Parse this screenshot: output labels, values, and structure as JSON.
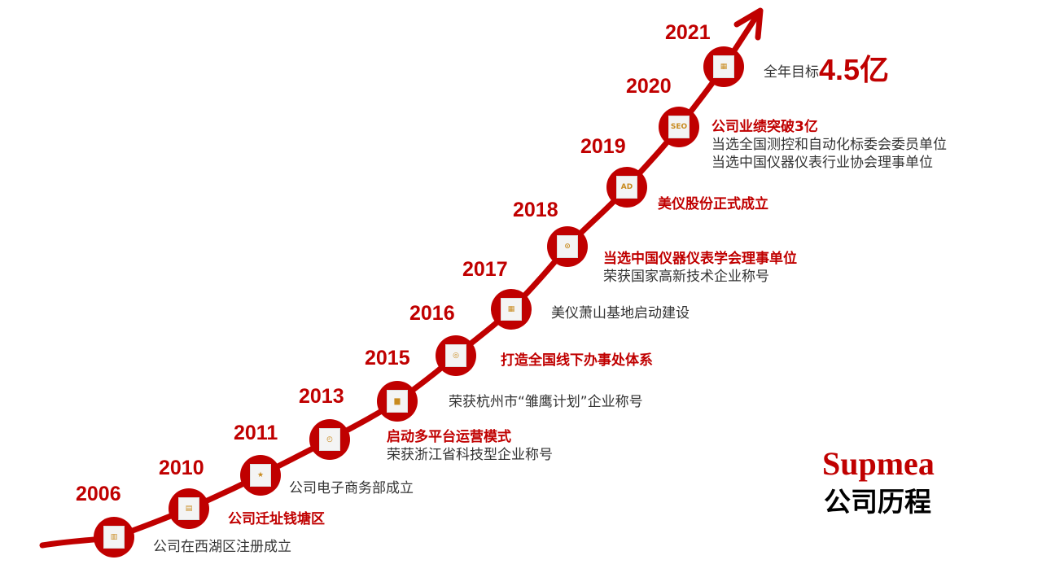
{
  "brand": {
    "logo": "Supmea",
    "title": "公司历程",
    "accent": "#c00000"
  },
  "events": [
    {
      "year": "2006",
      "icon": "building-icon",
      "lines": [
        {
          "text": "公司在西湖区注册成立",
          "bold": false
        }
      ]
    },
    {
      "year": "2010",
      "icon": "notebook-icon",
      "lines": [
        {
          "text": "公司迁址钱塘区",
          "bold": true
        }
      ]
    },
    {
      "year": "2011",
      "icon": "star-document-icon",
      "lines": [
        {
          "text": "公司电子商务部成立",
          "bold": false
        }
      ]
    },
    {
      "year": "2013",
      "icon": "dashboard-icon",
      "lines": [
        {
          "text": "启动多平台运营模式",
          "bold": true
        },
        {
          "text": "荣获浙江省科技型企业称号",
          "bold": false
        }
      ]
    },
    {
      "year": "2015",
      "icon": "bar-chart-icon",
      "lines": [
        {
          "text": "荣获杭州市“雏鹰计划”企业称号",
          "bold": false
        }
      ]
    },
    {
      "year": "2016",
      "icon": "monitor-icon",
      "lines": [
        {
          "text": "打造全国线下办事处体系",
          "bold": true
        }
      ]
    },
    {
      "year": "2017",
      "icon": "newspaper-icon",
      "lines": [
        {
          "text": "美仪萧山基地启动建设",
          "bold": false
        }
      ]
    },
    {
      "year": "2018",
      "icon": "control-panel-icon",
      "lines": [
        {
          "text": "当选中国仪器仪表学会理事单位",
          "bold": true
        },
        {
          "text": "荣获国家高新技术企业称号",
          "bold": false
        }
      ]
    },
    {
      "year": "2019",
      "icon": "ad-box-icon",
      "lines": [
        {
          "text": "美仪股份正式成立",
          "bold": true
        }
      ]
    },
    {
      "year": "2020",
      "icon": "seo-board-icon",
      "lines": [
        {
          "text": "公司业绩突破3亿",
          "bold": true
        },
        {
          "text": "当选全国测控和自动化标委会委员单位",
          "bold": false
        },
        {
          "text": "当选中国仪器仪表行业协会理事单位",
          "bold": false
        }
      ]
    },
    {
      "year": "2021",
      "icon": "office-buildings-icon",
      "lines": [
        {
          "text": "全年目标",
          "bold": false
        }
      ],
      "highlight": "4.5亿"
    }
  ]
}
